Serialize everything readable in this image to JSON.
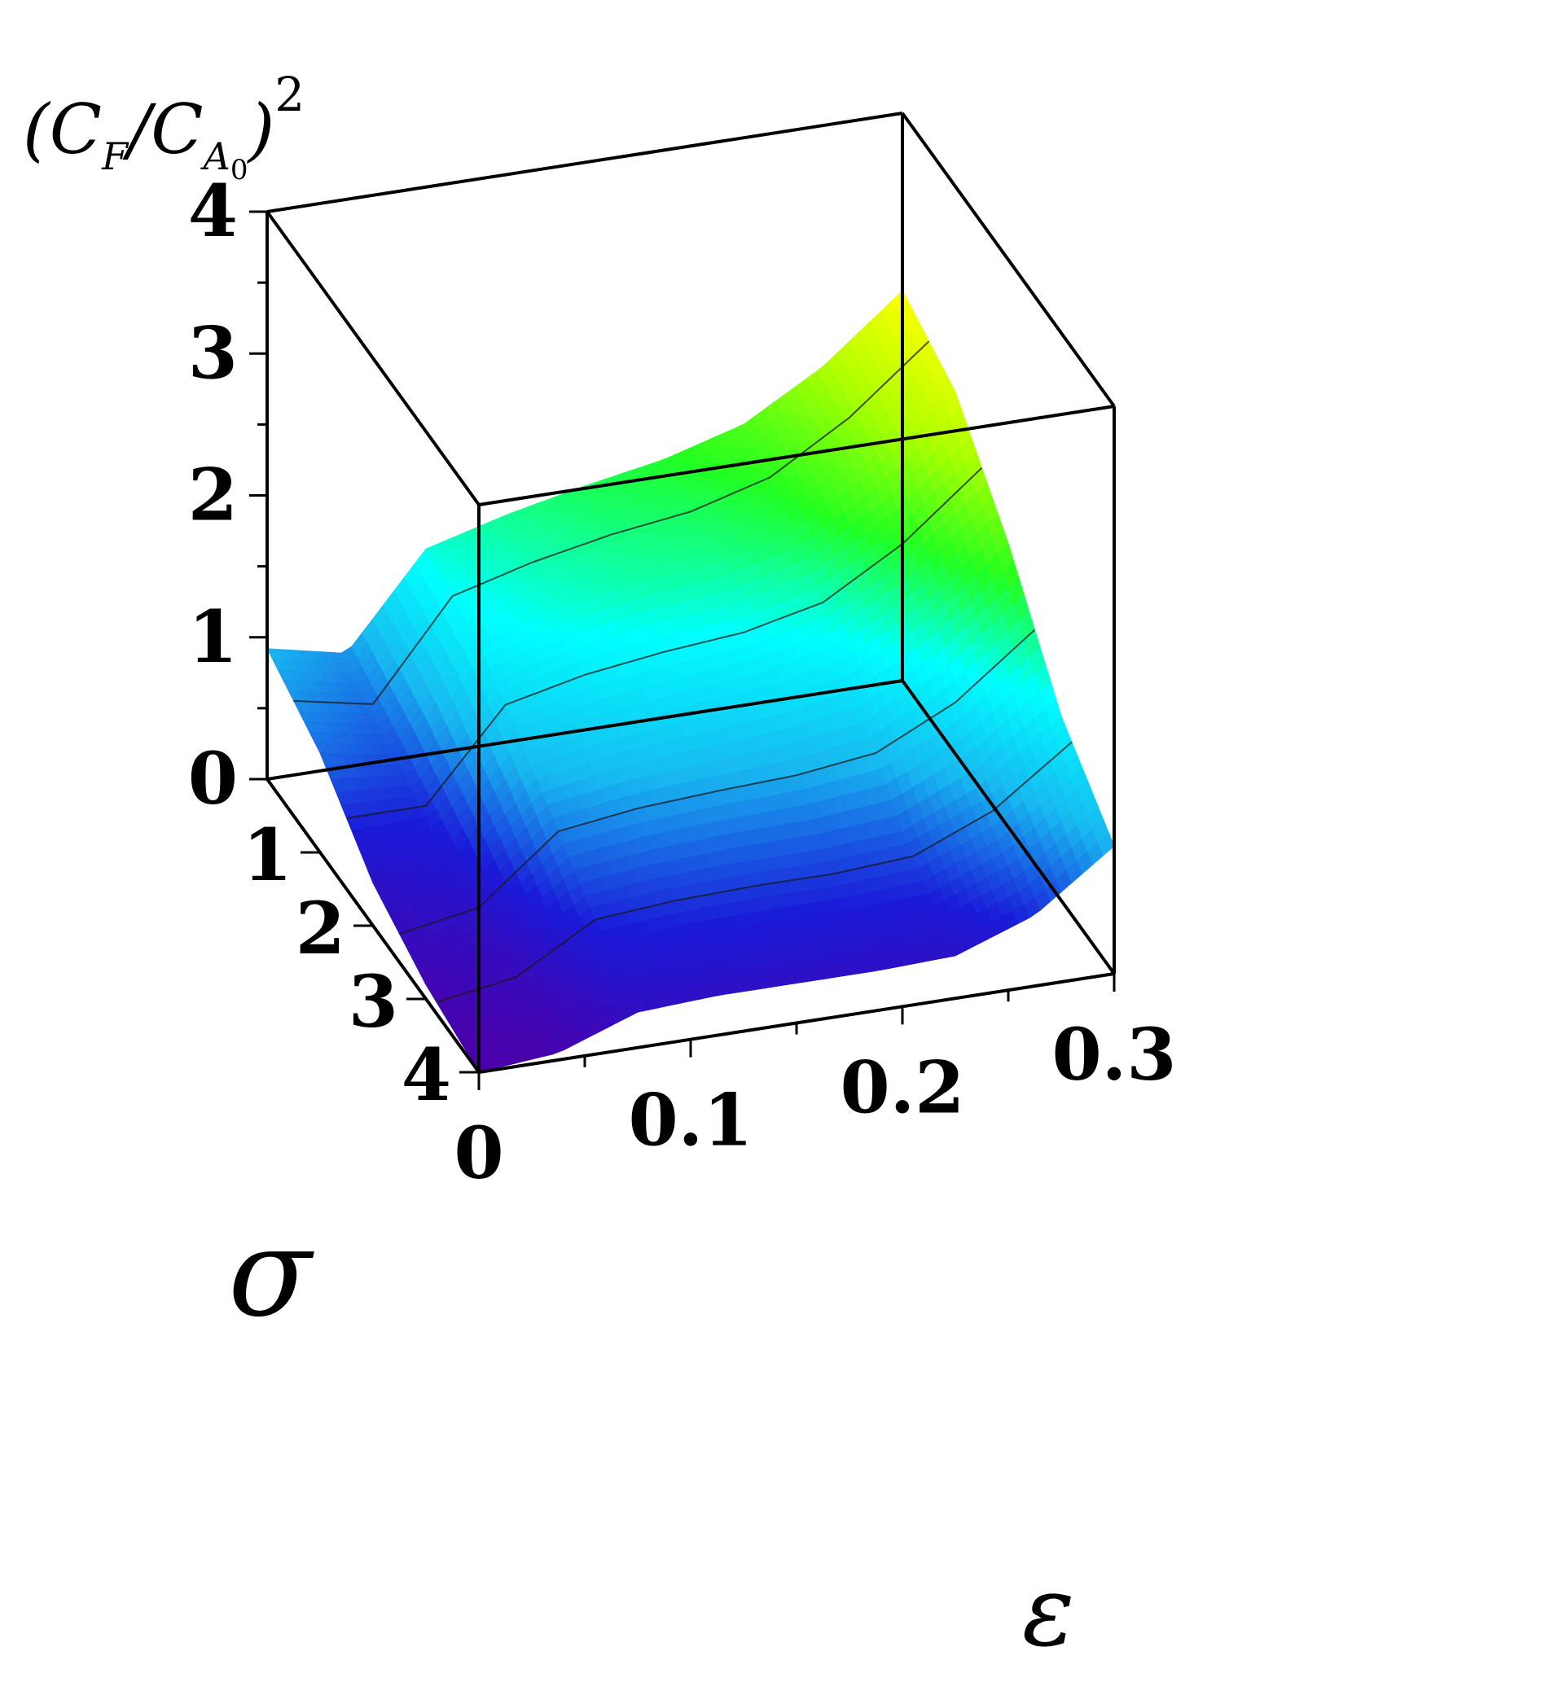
{
  "chart_data": {
    "type": "surface3d",
    "title": "",
    "axes": {
      "x": {
        "label": "ε",
        "range": [
          0,
          0.3
        ],
        "ticks": [
          0,
          0.1,
          0.2,
          0.3
        ],
        "tick_labels": [
          "0",
          "0.1",
          "0.2",
          "0.3"
        ]
      },
      "y": {
        "label": "σ",
        "range": [
          0,
          4
        ],
        "ticks": [
          0,
          1,
          2,
          3,
          4
        ],
        "tick_labels": [
          "1",
          "2",
          "3",
          "4"
        ]
      },
      "z": {
        "label": "(C_F/C_A0)^2",
        "range": [
          0,
          4
        ],
        "ticks": [
          0,
          1,
          2,
          3,
          4
        ],
        "tick_labels": [
          "0",
          "1",
          "2",
          "3",
          "4"
        ]
      }
    },
    "surface": {
      "sigma": [
        0,
        1,
        2,
        3,
        4
      ],
      "eps": [
        0,
        0.0375,
        0.075,
        0.1125,
        0.15,
        0.1875,
        0.225,
        0.2625,
        0.3
      ],
      "z": [
        [
          0.92,
          0.8,
          1.45,
          1.6,
          1.72,
          1.82,
          1.98,
          2.3,
          2.75
        ],
        [
          0.7,
          0.6,
          1.3,
          1.45,
          1.55,
          1.6,
          1.75,
          2.1,
          2.55
        ],
        [
          0.3,
          0.4,
          0.95,
          1.05,
          1.1,
          1.15,
          1.25,
          1.55,
          2.0
        ],
        [
          0.1,
          0.2,
          0.55,
          0.6,
          0.62,
          0.62,
          0.66,
          0.9,
          1.3
        ],
        [
          0.0,
          0.05,
          0.25,
          0.28,
          0.28,
          0.28,
          0.3,
          0.5,
          0.9
        ]
      ],
      "colormap": [
        "#4c00a8",
        "#1a1ad8",
        "#18b8f0",
        "#00ffff",
        "#22ff22",
        "#aaff00",
        "#ffff00"
      ],
      "contours": true
    },
    "box": true,
    "grid": false,
    "legend": "none"
  }
}
